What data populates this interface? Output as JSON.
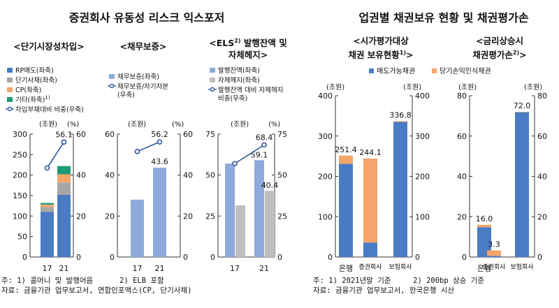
{
  "left_panel": {
    "title": "증권회사 유동성 리스크 익스포저",
    "sub1": "<단기시장성차입>",
    "sub2": "<채무보증>",
    "sub3a": "<ELS",
    "sub3sup": "2)",
    "sub3b": " 발행잔액 및",
    "sub3c": "자체헤지>",
    "footnote": "주: 1) 콜머니 및 발행어음      2) ELB 포함",
    "source": "자료: 금융기관 업무보고서, 연합인포맥스(CP, 단기사채)"
  },
  "right_panel": {
    "title": "업권별 채권보유 현황 및 채권평가손",
    "sub1a": "<시가평가대상",
    "sub1b": "채권 보유현황",
    "sub1sup": "1)",
    "sub1c": ">",
    "sub2a": "<금리상승시",
    "sub2b": "채권평가손",
    "sub2sup": "2)",
    "sub2c": ">",
    "footnote": "주: 1) 2021년말 기준     2) 200bp 상승 기준",
    "source": "자료: 금융기관 업무보고서, 한국은행 시산"
  },
  "chart_data": [
    {
      "type": "bar",
      "title": "단기시장성차입",
      "left_unit": "(조원)",
      "right_unit": "(%)",
      "categories": [
        "17",
        "21"
      ],
      "ylim": [
        0,
        300
      ],
      "y2lim": [
        0,
        60
      ],
      "left_ticks": [
        "0",
        "50",
        "100",
        "150",
        "200",
        "250",
        "300"
      ],
      "right_ticks": [
        "0",
        "20",
        "40",
        "60"
      ],
      "series": [
        {
          "name": "RP매도(좌축)",
          "values": [
            110,
            152
          ],
          "color": "#4a7cc5"
        },
        {
          "name": "단기사채(좌축)",
          "values": [
            12,
            30
          ],
          "color": "#a6a6a6"
        },
        {
          "name": "CP(좌축)",
          "values": [
            6,
            20
          ],
          "color": "#f4a66a"
        },
        {
          "name": "기타(좌축)",
          "values": [
            4,
            20
          ],
          "color": "#1f9a77"
        }
      ],
      "line": {
        "name": "차입부채대비 비중(우축)",
        "values": [
          43.5,
          56.1
        ],
        "labels": [
          "",
          "56.1"
        ]
      },
      "legend_sups": [
        "",
        "",
        "",
        "1)"
      ]
    },
    {
      "type": "bar",
      "title": "채무보증",
      "left_unit": "(조원)",
      "right_unit": "(%)",
      "categories": [
        "17",
        "21"
      ],
      "ylim": [
        0,
        60
      ],
      "y2lim": [
        0,
        60
      ],
      "left_ticks": [
        "0",
        "20",
        "40",
        "60"
      ],
      "right_ticks": [
        "0",
        "20",
        "40",
        "60"
      ],
      "series": [
        {
          "name": "채무보증(좌축)",
          "values": [
            28,
            43.6
          ],
          "labels": [
            "",
            "43.6"
          ],
          "color": "#8eaadb"
        }
      ],
      "line": {
        "name": "채무보증/자기자본 (우축)",
        "values": [
          51.5,
          56.2
        ],
        "labels": [
          "",
          "56.2"
        ]
      }
    },
    {
      "type": "bar",
      "title": "ELS 발행잔액 및 자체헤지",
      "left_unit": "(조원)",
      "right_unit": "(%)",
      "categories": [
        "17",
        "21"
      ],
      "ylim": [
        0,
        75
      ],
      "y2lim": [
        0,
        75
      ],
      "left_ticks": [
        "0",
        "25",
        "50",
        "75"
      ],
      "right_ticks": [
        "0",
        "25",
        "50",
        "75"
      ],
      "series": [
        {
          "name": "발행잔액(좌축)",
          "values": [
            57,
            59.1
          ],
          "labels": [
            "",
            "59.1"
          ],
          "color": "#8eaadb"
        },
        {
          "name": "자체헤지(좌축)",
          "values": [
            31.5,
            40.4
          ],
          "labels": [
            "",
            "40.4"
          ],
          "color": "#bfbfbf"
        }
      ],
      "line": {
        "name": "발행잔액 대비 자체헤지 비중(우축)",
        "values": [
          57,
          68.4
        ],
        "labels": [
          "",
          "68.4"
        ]
      }
    },
    {
      "type": "bar",
      "title": "시가평가대상 채권 보유현황",
      "left_unit": "(조원)",
      "right_unit": "(조원)",
      "categories": [
        "은행",
        "증권회사",
        "보험회사"
      ],
      "ylim": [
        0,
        400
      ],
      "y2lim": [
        0,
        400
      ],
      "left_ticks": [
        "0",
        "100",
        "200",
        "300",
        "400"
      ],
      "right_ticks": [
        "0",
        "100",
        "200",
        "300",
        "400"
      ],
      "series": [
        {
          "name": "매도가능채권",
          "values": [
            231,
            36,
            335
          ],
          "color": "#4a7cc5"
        },
        {
          "name": "당기손익인식채권",
          "values": [
            20.4,
            208.1,
            1.8
          ],
          "color": "#f4a66a"
        }
      ],
      "totals": [
        "251.4",
        "244.1",
        "336.8"
      ]
    },
    {
      "type": "bar",
      "title": "금리상승시 채권평가손",
      "left_unit": "(조원)",
      "right_unit": "(조원)",
      "categories": [
        "은행",
        "증권회사",
        "보험회사"
      ],
      "ylim": [
        0,
        80
      ],
      "y2lim": [
        0,
        80
      ],
      "left_ticks": [
        "0",
        "20",
        "40",
        "60",
        "80"
      ],
      "right_ticks": [
        "0",
        "20",
        "40",
        "60",
        "80"
      ],
      "series": [
        {
          "name": "매도가능채권",
          "values": [
            14.8,
            0.6,
            71.8
          ],
          "color": "#4a7cc5"
        },
        {
          "name": "당기손익인식채권",
          "values": [
            1.2,
            2.7,
            0.2
          ],
          "color": "#f4a66a"
        }
      ],
      "totals": [
        "16.0",
        "3.3",
        "72.0"
      ]
    }
  ]
}
